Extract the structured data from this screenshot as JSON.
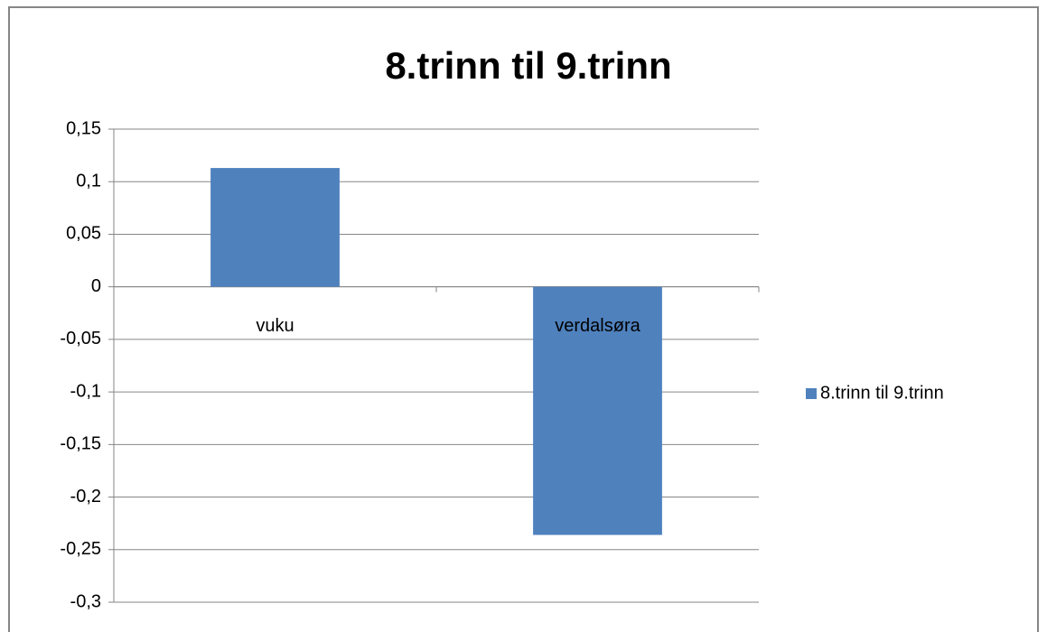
{
  "chart_data": {
    "type": "bar",
    "title": "8.trinn til 9.trinn",
    "categories": [
      "vuku",
      "verdalsøra"
    ],
    "series": [
      {
        "name": "8.trinn til 9.trinn",
        "color": "#4f81bd",
        "values": [
          0.113,
          -0.236
        ]
      }
    ],
    "ylim": [
      -0.3,
      0.15
    ],
    "yticks": [
      {
        "value": 0.15,
        "label": "0,15"
      },
      {
        "value": 0.1,
        "label": "0,1"
      },
      {
        "value": 0.05,
        "label": "0,05"
      },
      0,
      {
        "value": -0.05,
        "label": "-0,05"
      },
      {
        "value": -0.1,
        "label": "-0,1"
      },
      {
        "value": -0.15,
        "label": "-0,15"
      },
      {
        "value": -0.2,
        "label": "-0,2"
      },
      {
        "value": -0.25,
        "label": "-0,25"
      },
      {
        "value": -0.3,
        "label": "-0,3"
      }
    ],
    "grid": true,
    "legend": "right"
  }
}
